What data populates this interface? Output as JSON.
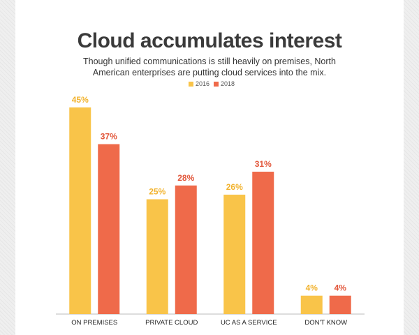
{
  "chart_data": {
    "type": "bar",
    "title": "Cloud accumulates interest",
    "subtitle": "Though unified communications is still heavily on premises, North American enterprises are putting cloud services into the mix.",
    "categories": [
      "ON PREMISES",
      "PRIVATE CLOUD",
      "UC AS A SERVICE",
      "DON'T KNOW"
    ],
    "series": [
      {
        "name": "2016",
        "color": "#f9c449",
        "values": [
          45,
          25,
          26,
          4
        ],
        "value_labels": [
          "45%",
          "25%",
          "26%",
          "4%"
        ]
      },
      {
        "name": "2018",
        "color": "#ef6a4a",
        "values": [
          37,
          28,
          31,
          4
        ],
        "value_labels": [
          "37%",
          "28%",
          "31%",
          "4%"
        ]
      }
    ]
  }
}
